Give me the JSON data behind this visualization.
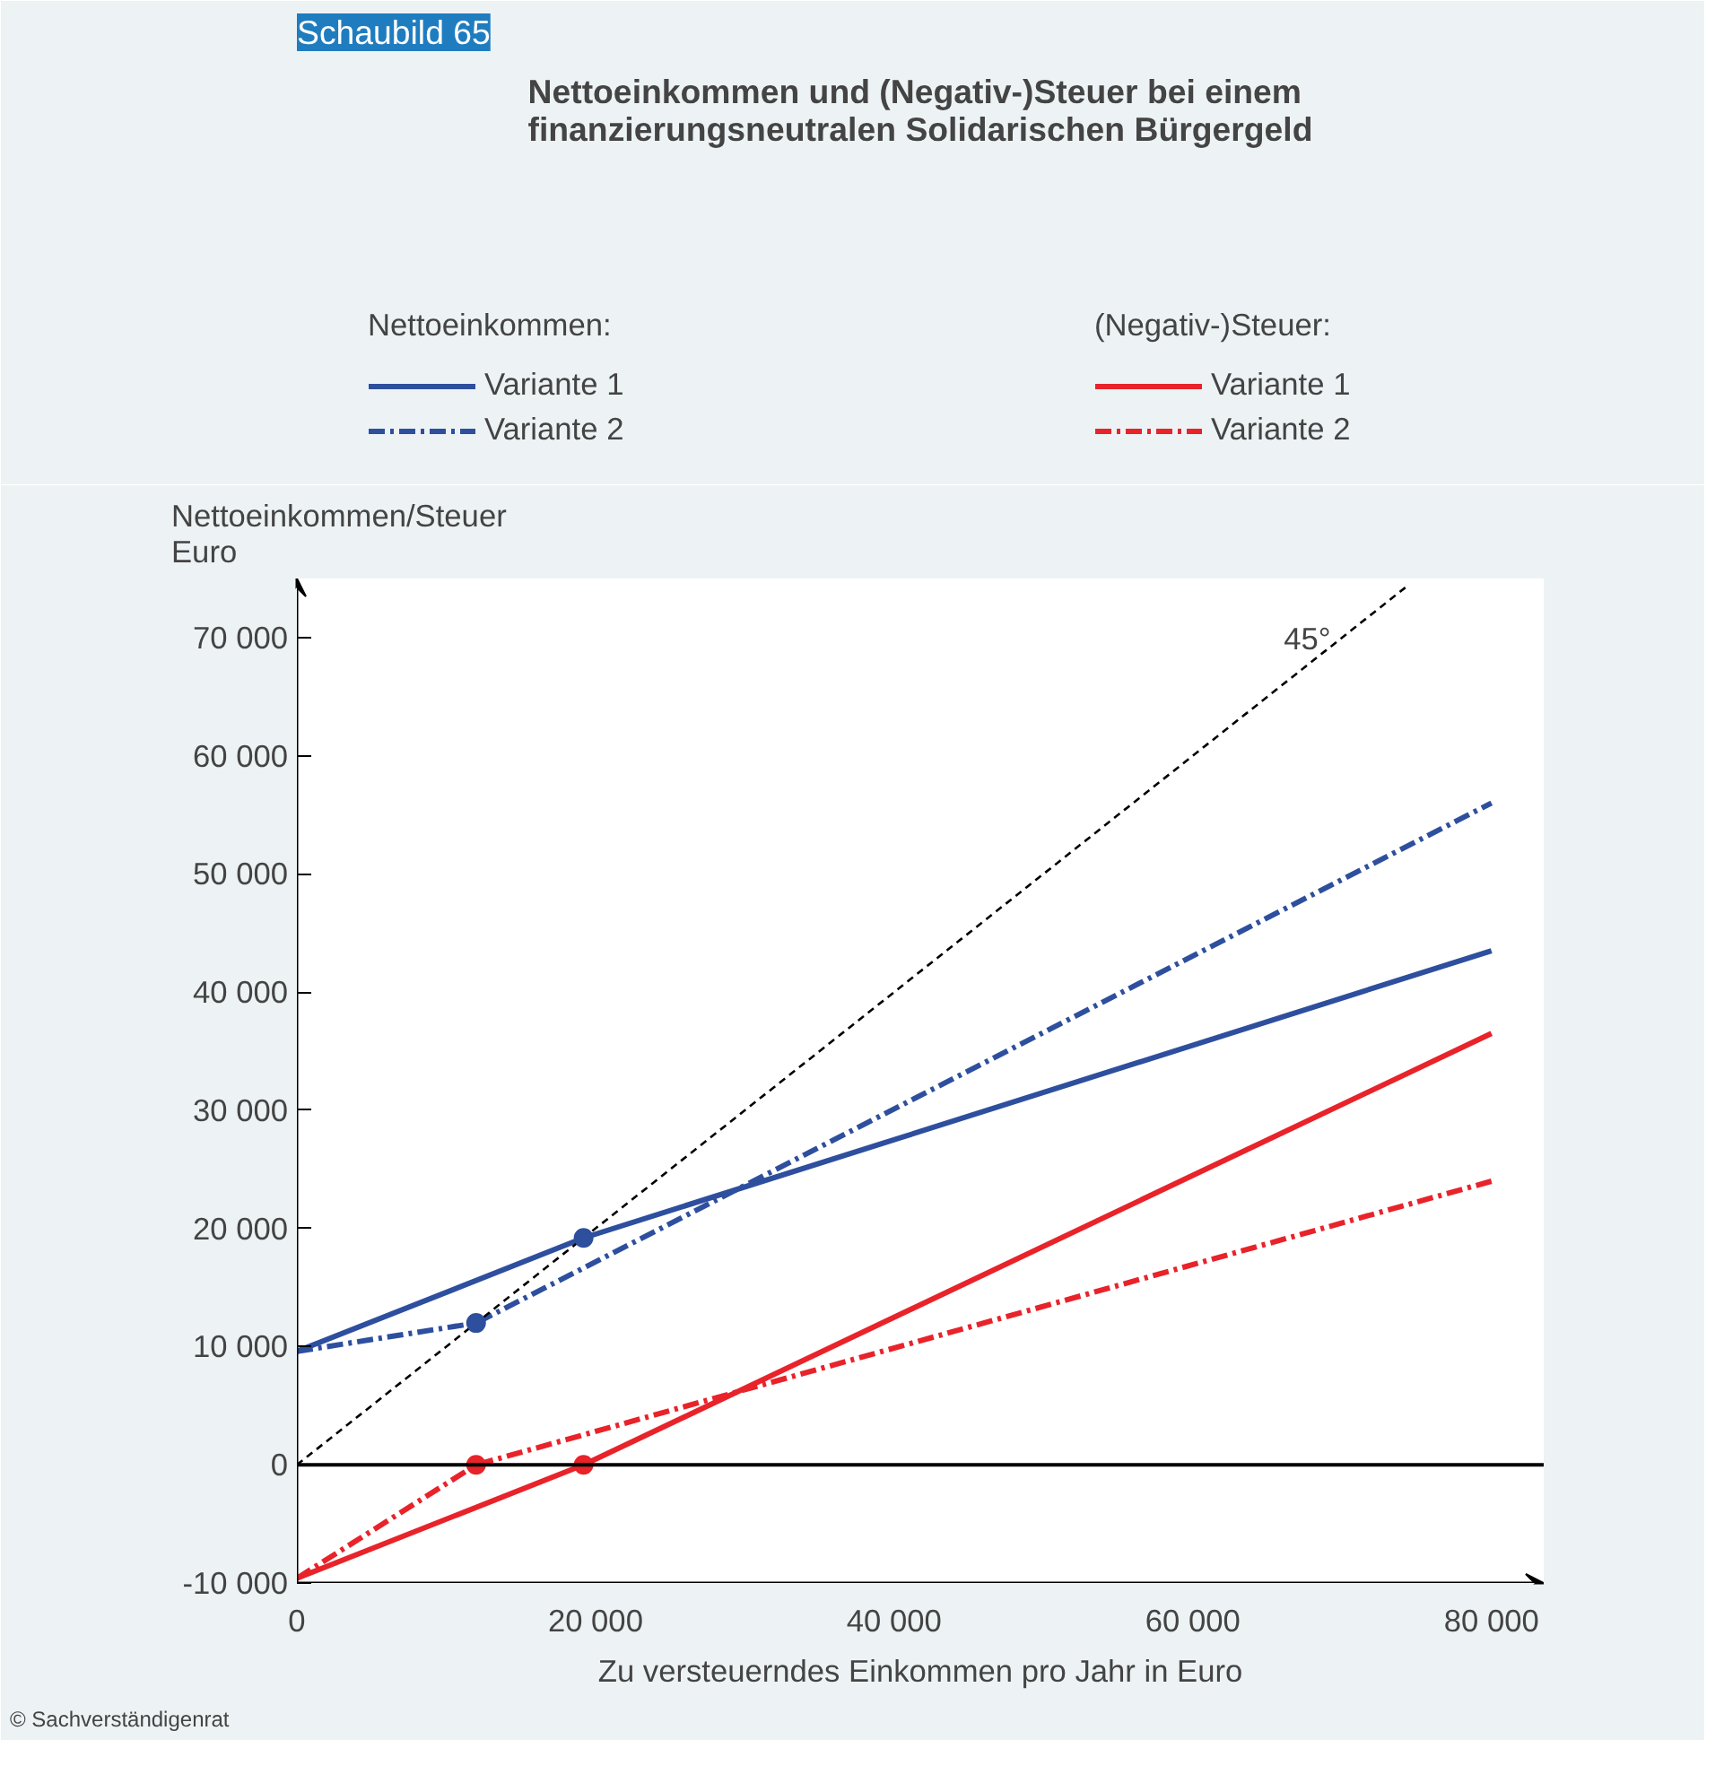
{
  "chart_data": {
    "type": "line",
    "title": "Nettoeinkommen und (Negativ-)Steuer bei einem\nfinanzierungsneutralen Solidarischen Bürgergeld",
    "xlabel": "Zu versteuerndes Einkommen pro Jahr in Euro",
    "ylabel": "Nettoeinkommen/Steuer\nEuro",
    "legend_title": [
      "Nettoeinkommen:",
      "(Negativ-)Steuer:"
    ],
    "series": [
      {
        "name": "Variante 1",
        "color": "#2e4f9e",
        "line_style": "solid",
        "x": [
          0,
          19200,
          80000
        ],
        "values": [
          9600,
          19200,
          43500
        ]
      },
      {
        "name": "Variante 2",
        "color": "#2e4f9e",
        "line_style": "dashdot",
        "x": [
          0,
          12000,
          80000
        ],
        "values": [
          9600,
          12000,
          56000
        ]
      },
      {
        "name": "Variante 1",
        "color": "#e8232a",
        "line_style": "solid",
        "x": [
          0,
          19200,
          80000
        ],
        "values": [
          -9600,
          0,
          36500
        ]
      },
      {
        "name": "Variante 2",
        "color": "#e8232a",
        "line_style": "dashdot",
        "x": [
          0,
          12000,
          80000
        ],
        "values": [
          -9600,
          0,
          24000
        ]
      },
      {
        "color": "#000000",
        "line_style": "dashed",
        "x": [
          0,
          74500
        ],
        "values": [
          0,
          74500
        ]
      },
      {
        "type": "scatter",
        "marker": "circle",
        "colors": [
          "#2e4f9e",
          "#2e4f9e",
          "#e8232a",
          "#e8232a"
        ],
        "x": [
          12000,
          19200,
          12000,
          19200
        ],
        "values": [
          12000,
          19200,
          0,
          0
        ]
      }
    ],
    "ref_lines": [
      {
        "axis": "y",
        "value": 0,
        "color": "#000000"
      }
    ],
    "annotations": [
      "45°",
      "Schaubild 65",
      "© Sachverständigenrat"
    ],
    "xlim": [
      0,
      83500
    ],
    "ylim": [
      -10000,
      75000
    ],
    "xticks": [
      0,
      {
        "value": 20000,
        "label": "20 000"
      },
      {
        "value": 40000,
        "label": "40 000"
      },
      {
        "value": 60000,
        "label": "60 000"
      },
      {
        "value": 80000,
        "label": "80 000"
      }
    ],
    "yticks": [
      {
        "value": -10000,
        "label": "-10 000"
      },
      0,
      {
        "value": 10000,
        "label": "10 000"
      },
      {
        "value": 20000,
        "label": "20 000"
      },
      {
        "value": 30000,
        "label": "30 000"
      },
      {
        "value": 40000,
        "label": "40 000"
      },
      {
        "value": 50000,
        "label": "50 000"
      },
      {
        "value": 60000,
        "label": "60 000"
      },
      {
        "value": 70000,
        "label": "70 000"
      }
    ],
    "grid": false,
    "legend": "top"
  }
}
